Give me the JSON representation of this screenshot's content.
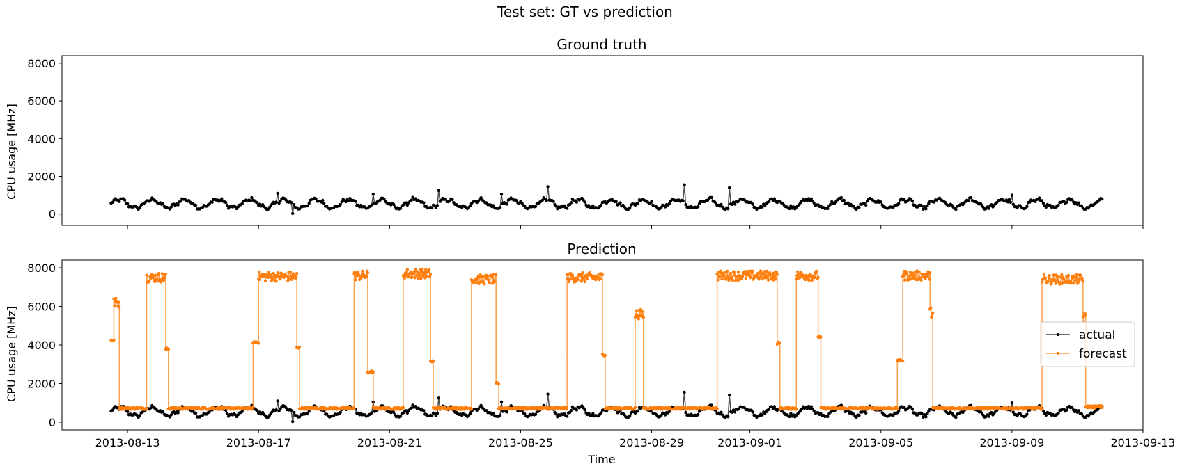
{
  "figure_title": "Test set: GT vs prediction",
  "chart_data": [
    {
      "type": "line",
      "title": "Ground truth",
      "xlabel": "",
      "ylabel": "CPU usage [MHz]",
      "xlim": [
        "2013-08-11",
        "2013-09-13"
      ],
      "ylim": [
        -600,
        8400
      ],
      "y_ticks": [
        0,
        2000,
        4000,
        6000,
        8000
      ],
      "x_ticks": [
        "2013-08-13",
        "2013-08-17",
        "2013-08-21",
        "2013-08-25",
        "2013-08-29",
        "2013-09-01",
        "2013-09-05",
        "2013-09-09",
        "2013-09-13"
      ],
      "x_tick_labels_visible": false,
      "grid": false,
      "legend": null,
      "series": [
        {
          "color": "#000000",
          "marker": "dot",
          "x_range": [
            "2013-08-12T12:00",
            "2013-09-11T18:00"
          ],
          "description_values": {
            "baseline": 550,
            "daily_amplitude": 220,
            "typical_range": [
              250,
              1000
            ],
            "spikes": [
              {
                "x": "2013-08-17T14:00",
                "y": 1100
              },
              {
                "x": "2013-08-18T01:00",
                "y": 30
              },
              {
                "x": "2013-08-20T12:00",
                "y": 1050
              },
              {
                "x": "2013-08-22T12:00",
                "y": 1250
              },
              {
                "x": "2013-08-24T10:00",
                "y": 1050
              },
              {
                "x": "2013-08-25T20:00",
                "y": 1450
              },
              {
                "x": "2013-08-30T00:00",
                "y": 1550
              },
              {
                "x": "2013-08-31T09:00",
                "y": 1400
              },
              {
                "x": "2013-09-09T00:00",
                "y": 1000
              }
            ]
          }
        }
      ]
    },
    {
      "type": "line",
      "title": "Prediction",
      "xlabel": "Time",
      "ylabel": "CPU usage [MHz]",
      "xlim": [
        "2013-08-11",
        "2013-09-13"
      ],
      "ylim": [
        -400,
        8400
      ],
      "y_ticks": [
        0,
        2000,
        4000,
        6000,
        8000
      ],
      "x_ticks": [
        "2013-08-13",
        "2013-08-17",
        "2013-08-21",
        "2013-08-25",
        "2013-08-29",
        "2013-09-01",
        "2013-09-05",
        "2013-09-09",
        "2013-09-13"
      ],
      "grid": false,
      "legend": "center-right",
      "series": [
        {
          "name": "actual",
          "color": "#000000",
          "marker": "dot",
          "x_range": [
            "2013-08-12T12:00",
            "2013-09-11T18:00"
          ]
        },
        {
          "name": "forecast",
          "color": "#ff7f0e",
          "marker": "dot",
          "low_level": 720,
          "segments": [
            {
              "start": "2013-08-12T12:00",
              "end": "2013-08-12T14:00",
              "y": 4250
            },
            {
              "start": "2013-08-12T14:00",
              "end": "2013-08-12T18:00",
              "y": 6200
            },
            {
              "start": "2013-08-12T18:00",
              "end": "2013-08-13T14:00",
              "y": 720
            },
            {
              "start": "2013-08-13T14:00",
              "end": "2013-08-14T04:00",
              "y": 7500
            },
            {
              "start": "2013-08-14T04:00",
              "end": "2013-08-14T06:00",
              "y": 3800
            },
            {
              "start": "2013-08-14T06:00",
              "end": "2013-08-16T20:00",
              "y": 720
            },
            {
              "start": "2013-08-16T20:00",
              "end": "2013-08-17T00:00",
              "y": 4150
            },
            {
              "start": "2013-08-17T00:00",
              "end": "2013-08-18T04:00",
              "y": 7550
            },
            {
              "start": "2013-08-18T04:00",
              "end": "2013-08-18T06:00",
              "y": 3850
            },
            {
              "start": "2013-08-18T06:00",
              "end": "2013-08-19T22:00",
              "y": 720
            },
            {
              "start": "2013-08-19T22:00",
              "end": "2013-08-20T08:00",
              "y": 7600
            },
            {
              "start": "2013-08-20T08:00",
              "end": "2013-08-20T12:00",
              "y": 2600
            },
            {
              "start": "2013-08-20T12:00",
              "end": "2013-08-20T18:00",
              "y": 720
            },
            {
              "start": "2013-08-20T18:00",
              "end": "2013-08-21T10:00",
              "y": 720
            },
            {
              "start": "2013-08-21T10:00",
              "end": "2013-08-22T06:00",
              "y": 7700
            },
            {
              "start": "2013-08-22T06:00",
              "end": "2013-08-22T08:00",
              "y": 3150
            },
            {
              "start": "2013-08-22T08:00",
              "end": "2013-08-23T12:00",
              "y": 720
            },
            {
              "start": "2013-08-23T12:00",
              "end": "2013-08-24T06:00",
              "y": 7400
            },
            {
              "start": "2013-08-24T06:00",
              "end": "2013-08-24T08:00",
              "y": 2000
            },
            {
              "start": "2013-08-24T08:00",
              "end": "2013-08-26T10:00",
              "y": 720
            },
            {
              "start": "2013-08-26T10:00",
              "end": "2013-08-27T12:00",
              "y": 7500
            },
            {
              "start": "2013-08-27T12:00",
              "end": "2013-08-27T14:00",
              "y": 3500
            },
            {
              "start": "2013-08-27T14:00",
              "end": "2013-08-28T12:00",
              "y": 720
            },
            {
              "start": "2013-08-28T12:00",
              "end": "2013-08-28T18:00",
              "y": 5600
            },
            {
              "start": "2013-08-28T18:00",
              "end": "2013-08-31T00:00",
              "y": 720
            },
            {
              "start": "2013-08-31T00:00",
              "end": "2013-09-01T20:00",
              "y": 7600
            },
            {
              "start": "2013-09-01T20:00",
              "end": "2013-09-01T22:00",
              "y": 4100
            },
            {
              "start": "2013-09-01T22:00",
              "end": "2013-09-02T10:00",
              "y": 720
            },
            {
              "start": "2013-09-02T10:00",
              "end": "2013-09-03T02:00",
              "y": 7600
            },
            {
              "start": "2013-09-03T02:00",
              "end": "2013-09-03T04:00",
              "y": 4400
            },
            {
              "start": "2013-09-03T04:00",
              "end": "2013-09-05T12:00",
              "y": 720
            },
            {
              "start": "2013-09-05T12:00",
              "end": "2013-09-05T16:00",
              "y": 3200
            },
            {
              "start": "2013-09-05T16:00",
              "end": "2013-09-06T12:00",
              "y": 7600
            },
            {
              "start": "2013-09-06T12:00",
              "end": "2013-09-06T14:00",
              "y": 5700
            },
            {
              "start": "2013-09-06T14:00",
              "end": "2013-09-09T22:00",
              "y": 720
            },
            {
              "start": "2013-09-09T22:00",
              "end": "2013-09-11T04:00",
              "y": 7400
            },
            {
              "start": "2013-09-11T04:00",
              "end": "2013-09-11T06:00",
              "y": 5400
            },
            {
              "start": "2013-09-11T06:00",
              "end": "2013-09-11T18:00",
              "y": 800
            }
          ]
        }
      ]
    }
  ]
}
